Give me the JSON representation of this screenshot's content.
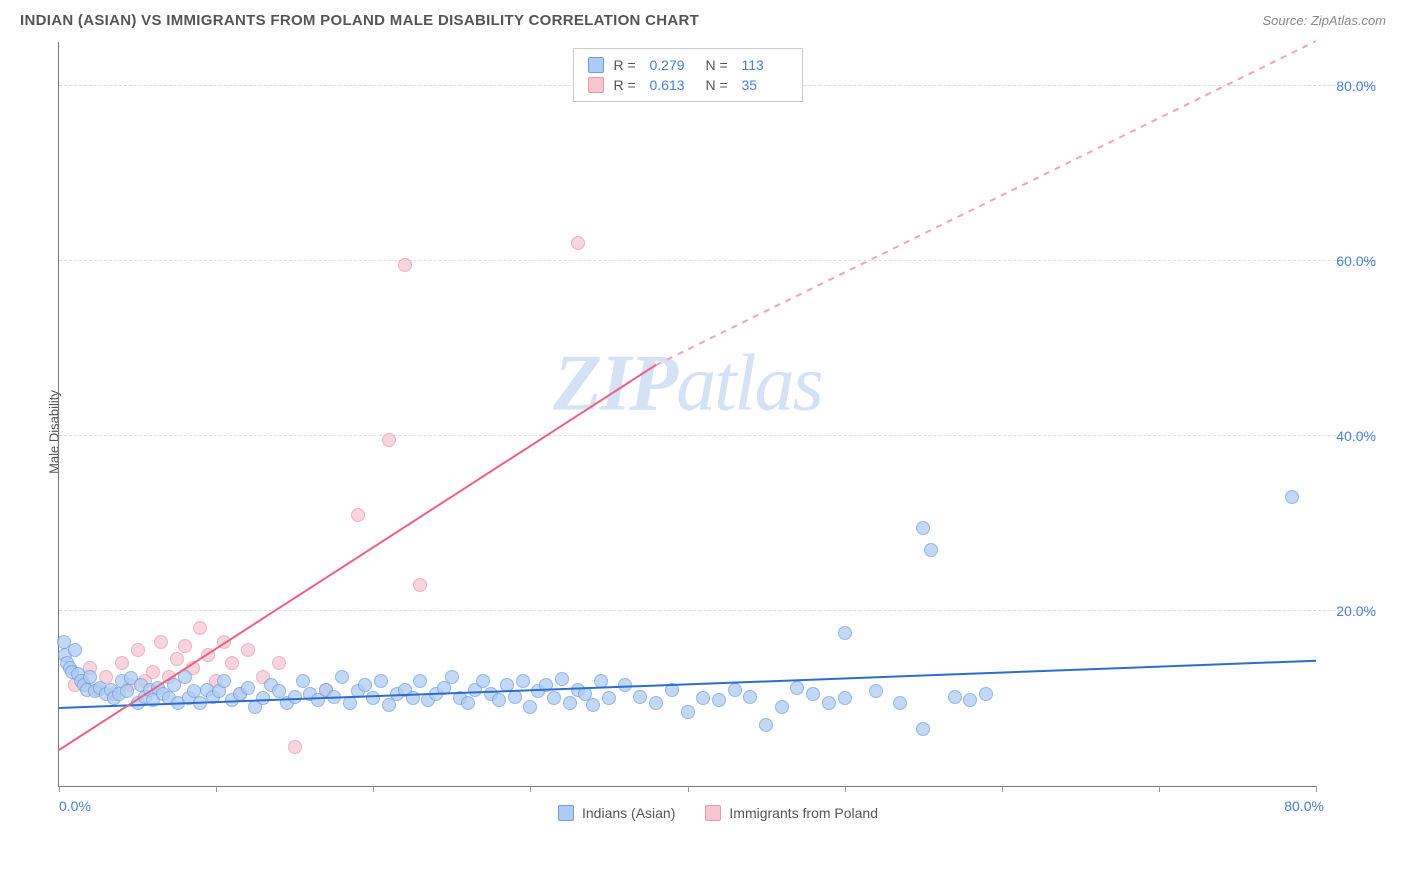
{
  "title": "INDIAN (ASIAN) VS IMMIGRANTS FROM POLAND MALE DISABILITY CORRELATION CHART",
  "source": "Source: ZipAtlas.com",
  "y_axis_label": "Male Disability",
  "watermark": {
    "part1": "ZIP",
    "part2": "atlas"
  },
  "chart": {
    "type": "scatter",
    "xlim": [
      0,
      80
    ],
    "ylim": [
      0,
      85
    ],
    "x_ticks": [
      0,
      10,
      20,
      30,
      40,
      50,
      60,
      70,
      80
    ],
    "x_tick_labels": {
      "0": "0.0%",
      "80": "80.0%"
    },
    "y_ticks": [
      20,
      40,
      60,
      80
    ],
    "y_tick_labels": {
      "20": "20.0%",
      "40": "40.0%",
      "60": "60.0%",
      "80": "80.0%"
    },
    "background_color": "#ffffff",
    "grid_color": "#dddddd",
    "axis_color": "#777777",
    "tick_label_color": "#4a7dd8",
    "point_radius": 7,
    "series": [
      {
        "name": "Indians (Asian)",
        "fill": "#aeccf2",
        "stroke": "#6f9fe0",
        "opacity": 0.75,
        "trend": {
          "x1": 0,
          "y1": 8.8,
          "x2": 80,
          "y2": 14.2,
          "color": "#2e6dd0",
          "width": 2,
          "dashed": false
        },
        "stats": {
          "R": "0.279",
          "N": "113"
        },
        "points": [
          [
            0.3,
            16.5
          ],
          [
            0.4,
            15.0
          ],
          [
            0.5,
            14.0
          ],
          [
            0.7,
            13.5
          ],
          [
            0.8,
            13.0
          ],
          [
            1.0,
            15.5
          ],
          [
            1.2,
            12.8
          ],
          [
            1.4,
            12.0
          ],
          [
            1.6,
            11.5
          ],
          [
            1.8,
            11.0
          ],
          [
            2.0,
            12.5
          ],
          [
            2.3,
            10.8
          ],
          [
            2.6,
            11.2
          ],
          [
            3.0,
            10.5
          ],
          [
            3.3,
            11.0
          ],
          [
            3.5,
            10.0
          ],
          [
            3.8,
            10.5
          ],
          [
            4.0,
            12.0
          ],
          [
            4.3,
            10.8
          ],
          [
            4.6,
            12.3
          ],
          [
            5.0,
            9.5
          ],
          [
            5.2,
            11.5
          ],
          [
            5.5,
            10.2
          ],
          [
            5.8,
            11.0
          ],
          [
            6.0,
            9.8
          ],
          [
            6.3,
            11.2
          ],
          [
            6.6,
            10.5
          ],
          [
            7.0,
            10.0
          ],
          [
            7.3,
            11.5
          ],
          [
            7.6,
            9.5
          ],
          [
            8.0,
            12.5
          ],
          [
            8.3,
            10.0
          ],
          [
            8.6,
            10.8
          ],
          [
            9.0,
            9.5
          ],
          [
            9.4,
            11.0
          ],
          [
            9.8,
            10.2
          ],
          [
            10.2,
            10.8
          ],
          [
            10.5,
            12.0
          ],
          [
            11.0,
            9.8
          ],
          [
            11.5,
            10.5
          ],
          [
            12.0,
            11.2
          ],
          [
            12.5,
            9.0
          ],
          [
            13.0,
            10.0
          ],
          [
            13.5,
            11.5
          ],
          [
            14.0,
            10.8
          ],
          [
            14.5,
            9.5
          ],
          [
            15.0,
            10.2
          ],
          [
            15.5,
            12.0
          ],
          [
            16.0,
            10.5
          ],
          [
            16.5,
            9.8
          ],
          [
            17.0,
            11.0
          ],
          [
            17.5,
            10.2
          ],
          [
            18.0,
            12.5
          ],
          [
            18.5,
            9.5
          ],
          [
            19.0,
            10.8
          ],
          [
            19.5,
            11.5
          ],
          [
            20.0,
            10.0
          ],
          [
            20.5,
            12.0
          ],
          [
            21.0,
            9.2
          ],
          [
            21.5,
            10.5
          ],
          [
            22.0,
            11.0
          ],
          [
            22.5,
            10.0
          ],
          [
            23.0,
            12.0
          ],
          [
            23.5,
            9.8
          ],
          [
            24.0,
            10.5
          ],
          [
            24.5,
            11.2
          ],
          [
            25.0,
            12.5
          ],
          [
            25.5,
            10.0
          ],
          [
            26.0,
            9.5
          ],
          [
            26.5,
            11.0
          ],
          [
            27.0,
            12.0
          ],
          [
            27.5,
            10.5
          ],
          [
            28.0,
            9.8
          ],
          [
            28.5,
            11.5
          ],
          [
            29.0,
            10.2
          ],
          [
            29.5,
            12.0
          ],
          [
            30.0,
            9.0
          ],
          [
            30.5,
            10.8
          ],
          [
            31.0,
            11.5
          ],
          [
            31.5,
            10.0
          ],
          [
            32.0,
            12.2
          ],
          [
            32.5,
            9.5
          ],
          [
            33.0,
            11.0
          ],
          [
            33.5,
            10.5
          ],
          [
            34.0,
            9.2
          ],
          [
            34.5,
            12.0
          ],
          [
            35.0,
            10.0
          ],
          [
            36.0,
            11.5
          ],
          [
            37.0,
            10.2
          ],
          [
            38.0,
            9.5
          ],
          [
            39.0,
            11.0
          ],
          [
            40.0,
            8.5
          ],
          [
            41.0,
            10.0
          ],
          [
            42.0,
            9.8
          ],
          [
            43.0,
            11.0
          ],
          [
            44.0,
            10.2
          ],
          [
            45.0,
            7.0
          ],
          [
            46.0,
            9.0
          ],
          [
            47.0,
            11.2
          ],
          [
            48.0,
            10.5
          ],
          [
            49.0,
            9.5
          ],
          [
            50.0,
            10.0
          ],
          [
            52.0,
            10.8
          ],
          [
            53.5,
            9.5
          ],
          [
            55.0,
            6.5
          ],
          [
            57.0,
            10.2
          ],
          [
            58.0,
            9.8
          ],
          [
            59.0,
            10.5
          ],
          [
            55.0,
            29.5
          ],
          [
            55.5,
            27.0
          ],
          [
            50.0,
            17.5
          ],
          [
            78.5,
            33.0
          ]
        ]
      },
      {
        "name": "Immigrants from Poland",
        "fill": "#f6c6d1",
        "stroke": "#eb98ae",
        "opacity": 0.75,
        "trend": {
          "x1": 0,
          "y1": 4.0,
          "x2": 38,
          "y2": 48.0,
          "color": "#e86381",
          "width": 2,
          "dashed": false
        },
        "trend_ext": {
          "x1": 38,
          "y1": 48.0,
          "x2": 80,
          "y2": 85.0,
          "color": "#f2a3b5",
          "width": 1.5,
          "dashed": true
        },
        "stats": {
          "R": "0.613",
          "N": "35"
        },
        "points": [
          [
            1.0,
            11.5
          ],
          [
            1.5,
            12.0
          ],
          [
            2.0,
            13.5
          ],
          [
            2.5,
            11.0
          ],
          [
            3.0,
            12.5
          ],
          [
            3.5,
            10.5
          ],
          [
            4.0,
            14.0
          ],
          [
            4.5,
            11.5
          ],
          [
            5.0,
            15.5
          ],
          [
            5.5,
            12.0
          ],
          [
            6.0,
            13.0
          ],
          [
            6.5,
            16.5
          ],
          [
            7.0,
            12.5
          ],
          [
            7.5,
            14.5
          ],
          [
            8.0,
            16.0
          ],
          [
            8.5,
            13.5
          ],
          [
            9.0,
            18.0
          ],
          [
            9.5,
            15.0
          ],
          [
            10.0,
            12.0
          ],
          [
            10.5,
            16.5
          ],
          [
            11.0,
            14.0
          ],
          [
            11.5,
            10.5
          ],
          [
            12.0,
            15.5
          ],
          [
            13.0,
            12.5
          ],
          [
            14.0,
            14.0
          ],
          [
            15.0,
            4.5
          ],
          [
            17.0,
            11.0
          ],
          [
            19.0,
            31.0
          ],
          [
            21.0,
            39.5
          ],
          [
            22.0,
            59.5
          ],
          [
            23.0,
            23.0
          ],
          [
            33.0,
            62.0
          ]
        ]
      }
    ]
  },
  "legend_labels": {
    "R": "R =",
    "N": "N ="
  }
}
